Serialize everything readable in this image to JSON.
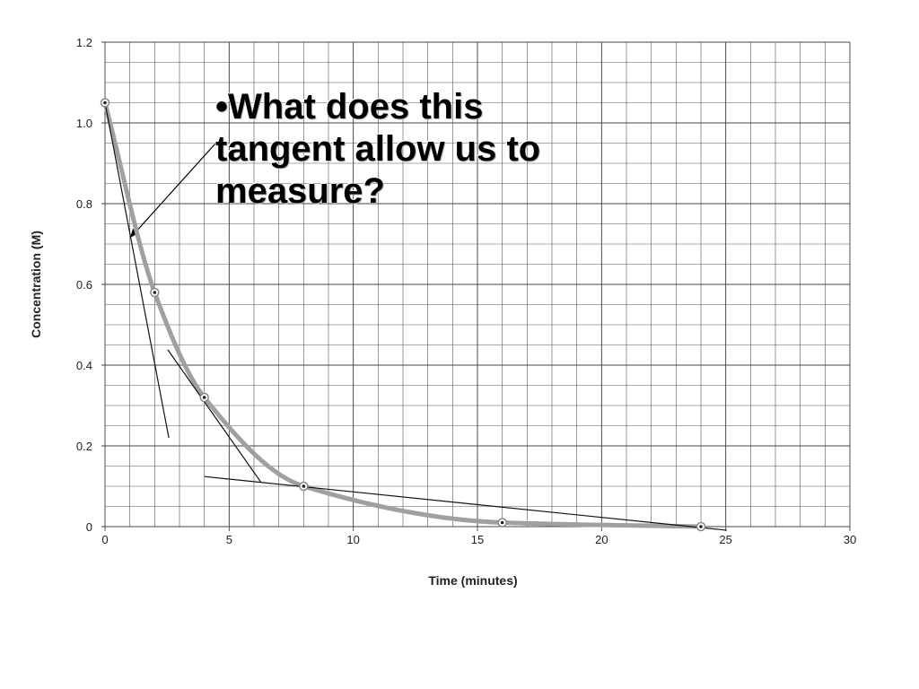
{
  "chart_data": {
    "type": "line",
    "x": [
      0,
      2,
      4,
      8,
      16,
      24
    ],
    "values": [
      1.05,
      0.58,
      0.32,
      0.1,
      0.01,
      0.0
    ],
    "color": "#a0a0a0",
    "xlabel": "Time (minutes)",
    "ylabel": "Concentration (M)",
    "xlim": [
      0,
      30
    ],
    "xticks": [
      0,
      5,
      10,
      15,
      20,
      25,
      30
    ],
    "ylim": [
      0,
      1.2
    ],
    "yticks": [
      0,
      0.2,
      0.4,
      0.6,
      0.8,
      {
        "value": 1,
        "label": "1.0"
      },
      1.2
    ],
    "grid": true,
    "minor_grid": {
      "x": 1,
      "y": 0.05
    },
    "tangents": [
      {
        "x": [
          0,
          2.57
        ],
        "y": [
          1.05,
          0.22
        ]
      },
      {
        "x": [
          2.53,
          6.29
        ],
        "y": [
          0.438,
          0.109
        ]
      },
      {
        "x": [
          4.01,
          25.04
        ],
        "y": [
          0.124,
          -0.009
        ]
      }
    ],
    "annotation": "•What does this tangent allow us to measure?"
  }
}
